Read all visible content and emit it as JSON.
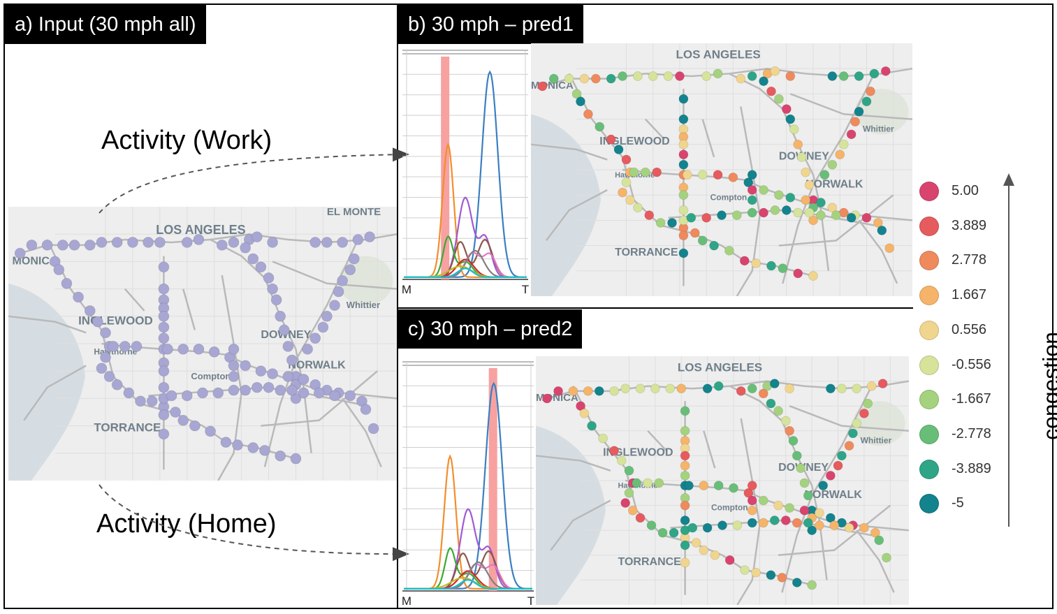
{
  "panels": {
    "a": {
      "title": "a) Input (30 mph all)"
    },
    "b": {
      "title": "b) 30 mph – pred1"
    },
    "c": {
      "title": "c) 30 mph – pred2"
    }
  },
  "annotations": {
    "work": "Activity (Work)",
    "home": "Activity (Home)"
  },
  "map_labels": {
    "los_angeles": "LOS ANGELES",
    "el_monte": "EL MONTE",
    "monica": "MONICA",
    "inglewood": "INGLEWOOD",
    "hawthorne": "Hawthorne",
    "compton": "Compton",
    "downey": "DOWNEY",
    "norwalk": "NORWALK",
    "torrance": "TORRANCE",
    "whittier": "Whittier"
  },
  "chart_axis": {
    "x_start": "M",
    "x_end": "T"
  },
  "legend": {
    "items": [
      {
        "label": "5.00",
        "color": "#d9446f"
      },
      {
        "label": "3.889",
        "color": "#e65b5e"
      },
      {
        "label": "2.778",
        "color": "#ef8a5d"
      },
      {
        "label": "1.667",
        "color": "#f5b46a"
      },
      {
        "label": "0.556",
        "color": "#f0d58e"
      },
      {
        "label": "-0.556",
        "color": "#d6e39a"
      },
      {
        "label": "-1.667",
        "color": "#a5d27f"
      },
      {
        "label": "-2.778",
        "color": "#68be78"
      },
      {
        "label": "-3.889",
        "color": "#2fa587"
      },
      {
        "label": "-5",
        "color": "#13838d"
      }
    ],
    "axis_label": "congestion"
  },
  "colors": {
    "input_dot": "#a8a6d2",
    "highlight": "#f7a1a1",
    "road": "#b9b9b9",
    "water": "#d6dde2",
    "land": "#eeeeee"
  }
}
